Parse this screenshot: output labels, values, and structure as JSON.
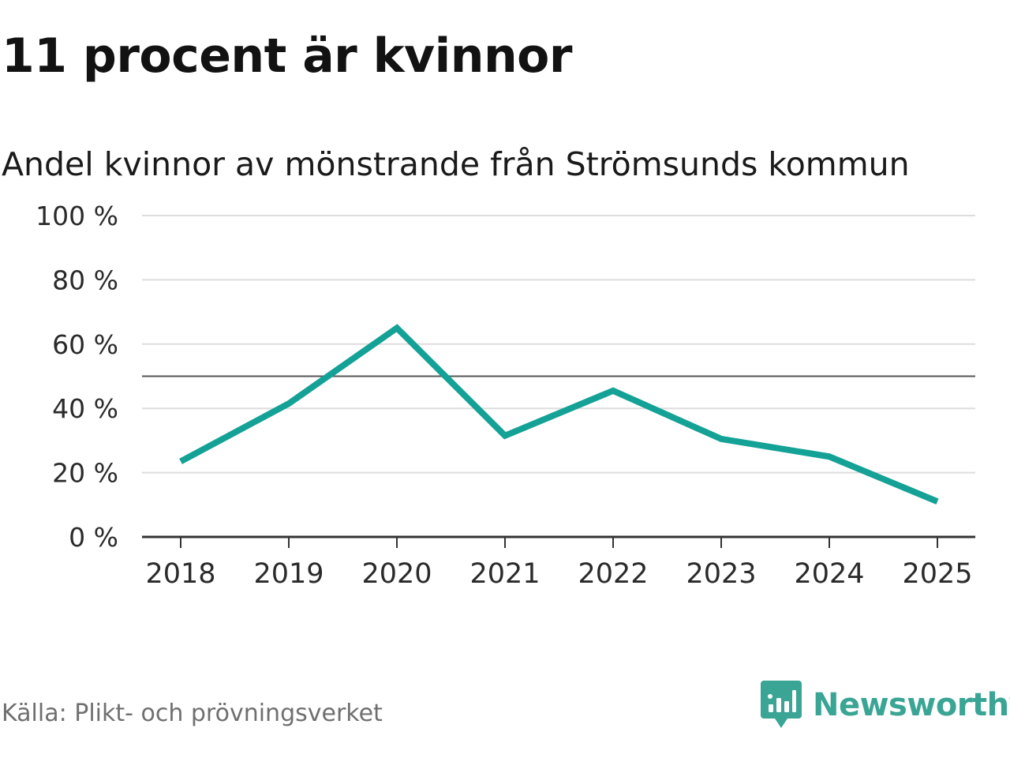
{
  "headline": "11 procent är kvinnor",
  "subtitle": "Andel kvinnor av mönstrande från Strömsunds kommun",
  "source": "Källa: Plikt- och prövningsverket",
  "brand": {
    "name": "Newsworthy",
    "icon": "newsworthy-logo-icon"
  },
  "colors": {
    "series": "#14a196",
    "grid": "#dddddd",
    "axis": "#333333",
    "reference": "#555555",
    "brand": "#3aa595"
  },
  "chart_data": {
    "type": "line",
    "title": "Andel kvinnor av mönstrande från Strömsunds kommun",
    "xlabel": "",
    "ylabel": "",
    "categories": [
      "2018",
      "2019",
      "2020",
      "2021",
      "2022",
      "2023",
      "2024",
      "2025"
    ],
    "series": [
      {
        "name": "Andel kvinnor",
        "values": [
          23.5,
          41.5,
          65,
          31.5,
          45.5,
          30.5,
          25,
          11
        ]
      }
    ],
    "reference_line": 50,
    "ylim": [
      0,
      100
    ],
    "yticks": [
      0,
      20,
      40,
      60,
      80,
      100
    ],
    "ytick_labels": [
      "0 %",
      "20 %",
      "40 %",
      "60 %",
      "80 %",
      "100 %"
    ],
    "grid": true,
    "legend": "none"
  }
}
